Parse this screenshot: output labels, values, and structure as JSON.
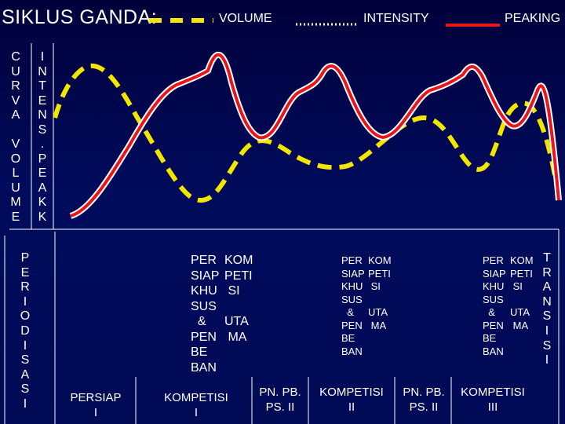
{
  "title": "SIKLUS GANDA:",
  "legend": {
    "volume": "VOLUME",
    "intensity": "INTENSITY",
    "peaking": "PEAKING"
  },
  "colors": {
    "volume_line": "#f2e600",
    "intensity_line": "#ffffff",
    "peaking_line": "#e8151b",
    "background": "#000a55"
  },
  "left_labels": {
    "kurva_volume": "C\nU\nR\nV\nA\n\nV\nO\nL\nU\nM\nE",
    "intens_peak": "I\nN\nT\nE\nN\nS\n.\nP\nE\nA\nK\nK",
    "periodisasi": "P\nE\nR\nI\nO\nD\nI\nS\nA\nS\nI"
  },
  "right_label": {
    "transisi": "T\nR\nA\nN\nS\nI\nS\nI"
  },
  "blocks": {
    "block1_left": "PER\nSIAP\nKHU\nSUS\n  &\nPEN\nBE\nBAN",
    "block1_right": "KOM\nPETI\n SI\n\nUTA\n MA",
    "block2_left": "PER\nSIAP\nKHU\nSUS\n  &\nPEN\nBE\nBAN",
    "block2_right": "KOM\nPETI\n SI\n\nUTA\n MA",
    "block3_left": "PER\nSIAP\nKHU\nSUS\n  &\nPEN\nBE\nBAN",
    "block3_right": "KOM\nPETI\n SI\n\nUTA\n MA"
  },
  "bottom_labels": {
    "persiap1": "PERSIAP\nI",
    "kompetisi1": "KOMPETISI\nI",
    "pnpb1": "PN. PB.\nPS. II",
    "kompetisi2": "KOMPETISI\nII",
    "pnpb2": "PN. PB.\nPS. II",
    "kompetisi3": "KOMPETISI\nIII"
  }
}
